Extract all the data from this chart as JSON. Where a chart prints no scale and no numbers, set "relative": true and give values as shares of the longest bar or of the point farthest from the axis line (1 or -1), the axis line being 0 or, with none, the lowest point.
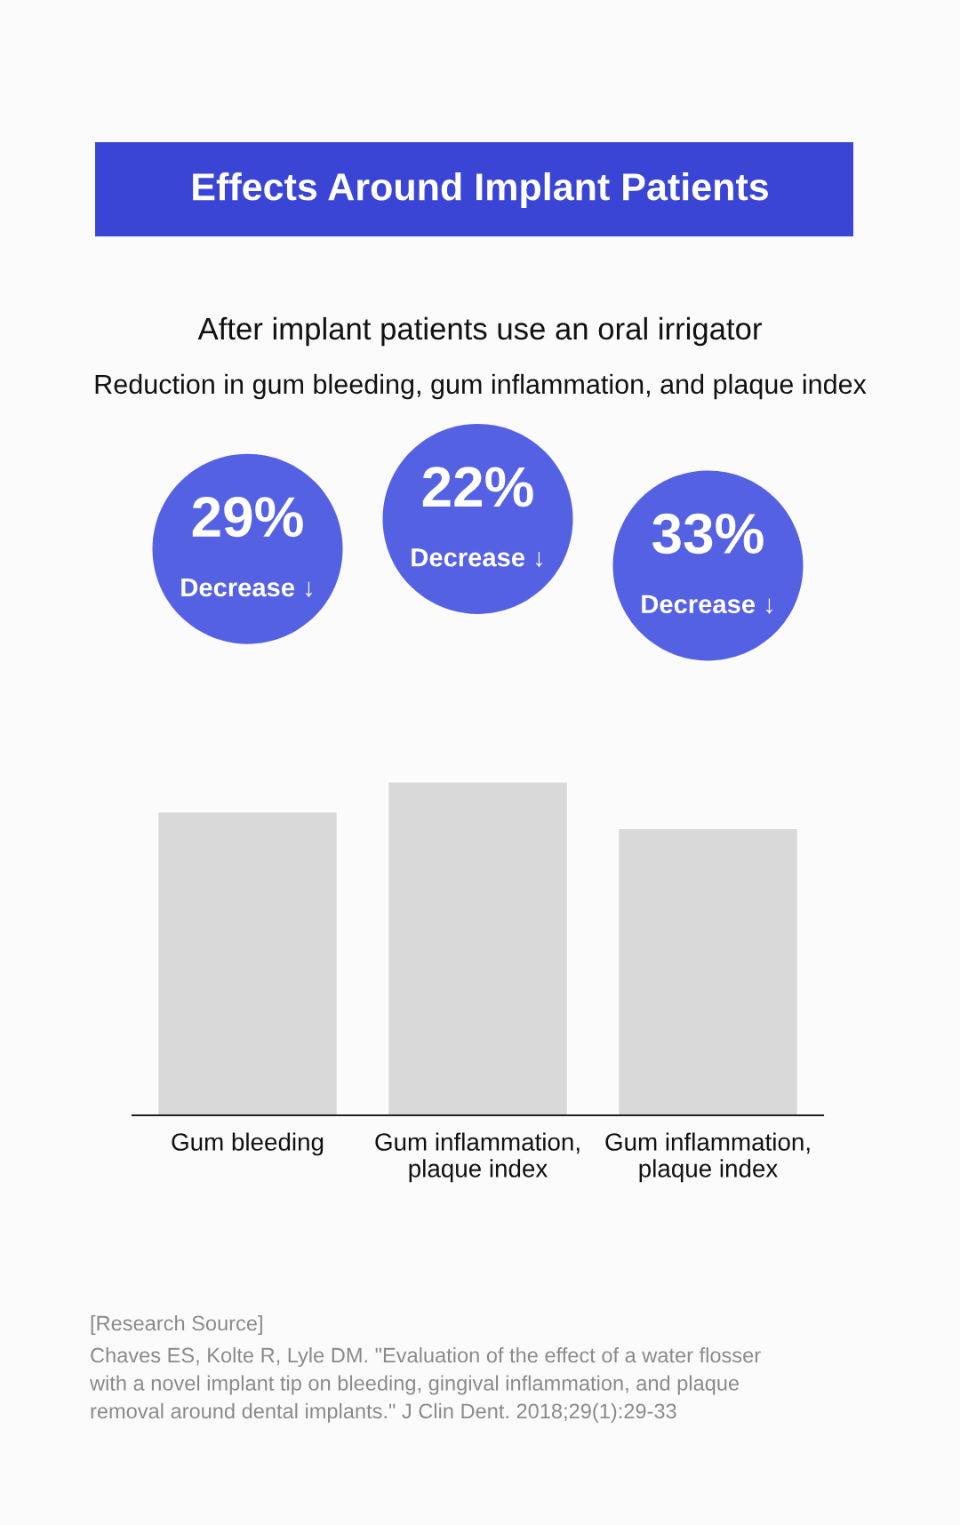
{
  "chart_data": {
    "type": "bar",
    "title": "Effects Around Implant Patients",
    "subtitle": "After implant patients use an oral irrigator\nReduction in gum bleeding, gum inflammation, and plaque index",
    "categories": [
      "Gum bleeding",
      "Gum inflammation,\nplaque index",
      "Gum inflammation,\nplaque index"
    ],
    "values": [
      0.91,
      1,
      0.86
    ],
    "relative": true,
    "color": "#d9d9d9",
    "annotations": [
      "29%\nDecrease ↓",
      "22%\nDecrease ↓",
      "33%\nDecrease ↓",
      "[Research Source]",
      "Chaves ES, Kolte R, Lyle DM. \"Evaluation of the effect of a water flosser\nwith a novel implant tip on bleeding, gingival inflammation, and plaque\nremoval around dental implants.\" J Clin Dent. 2018;29(1):29-33"
    ],
    "grid": false,
    "legend": false
  }
}
